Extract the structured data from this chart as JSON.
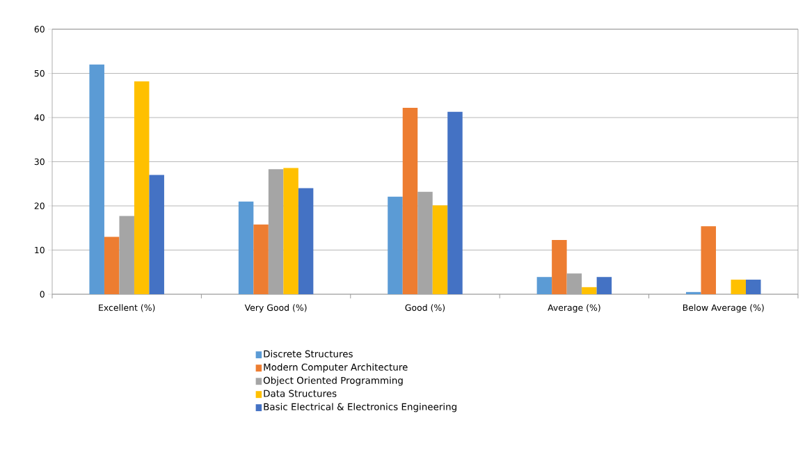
{
  "chart_data": {
    "type": "bar",
    "categories": [
      "Excellent (%)",
      "Very Good (%)",
      "Good (%)",
      "Average (%)",
      "Below Average (%)"
    ],
    "series": [
      {
        "name": "Discrete Structures",
        "color": "#5b9bd5",
        "values": [
          52,
          21,
          22.1,
          3.9,
          0.5
        ]
      },
      {
        "name": "Modern Computer Architecture",
        "color": "#ed7d31",
        "values": [
          13,
          15.8,
          42.2,
          12.3,
          15.4
        ]
      },
      {
        "name": "Object Oriented Programming",
        "color": "#a5a5a5",
        "values": [
          17.7,
          28.3,
          23.2,
          4.7,
          0
        ]
      },
      {
        "name": "Data Structures",
        "color": "#ffc000",
        "values": [
          48.2,
          28.6,
          20.1,
          1.6,
          3.3
        ]
      },
      {
        "name": "Basic Electrical & Electronics Engineering",
        "color": "#4472c4",
        "values": [
          27,
          24,
          41.3,
          3.9,
          3.3
        ]
      }
    ],
    "ylim": [
      0,
      60
    ],
    "yticks": [
      0,
      10,
      20,
      30,
      40,
      50,
      60
    ],
    "grid": "y",
    "legend": "bottom"
  }
}
